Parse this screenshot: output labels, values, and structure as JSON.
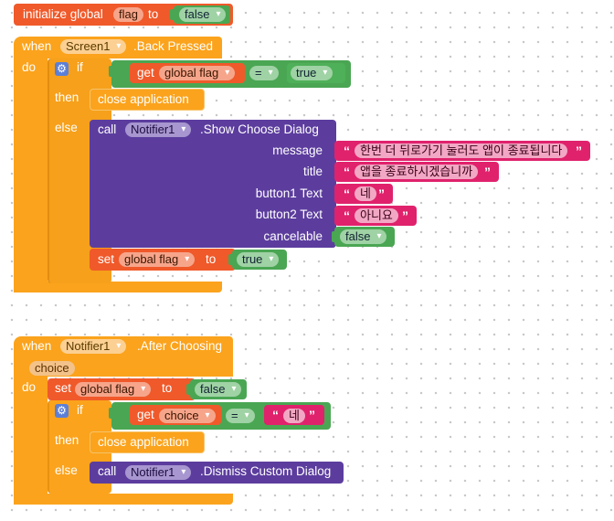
{
  "global_init": {
    "label": "initialize global",
    "var_name": "flag",
    "to_label": "to",
    "value": "false"
  },
  "back_pressed": {
    "when_label": "when",
    "component": "Screen1",
    "event": ".Back Pressed",
    "do_label": "do",
    "if_label": "if",
    "then_label": "then",
    "else_label": "else",
    "get_label": "get",
    "get_var": "global flag",
    "compare_op": "=",
    "compare_value": "true",
    "close_label": "close application",
    "call_label": "call",
    "notifier": "Notifier1",
    "method": ".Show Choose Dialog",
    "params": [
      {
        "name": "message",
        "value": "한번 더 뒤로가기 눌러도 앱이 종료됩니다"
      },
      {
        "name": "title",
        "value": "앱을 종료하시겠습니까"
      },
      {
        "name": "button1 Text",
        "value": "네"
      },
      {
        "name": "button2 Text",
        "value": "아니요"
      },
      {
        "name": "cancelable",
        "value": "false"
      }
    ],
    "set_label": "set",
    "set_var": "global flag",
    "set_to": "to",
    "set_value": "true"
  },
  "after_choosing": {
    "when_label": "when",
    "component": "Notifier1",
    "event": ".After Choosing",
    "param": "choice",
    "do_label": "do",
    "set_label": "set",
    "set_var": "global flag",
    "set_to": "to",
    "set_value": "false",
    "if_label": "if",
    "get_label": "get",
    "get_var": "choice",
    "compare_op": "=",
    "compare_value": "네",
    "then_label": "then",
    "close_label": "close application",
    "else_label": "else",
    "call_label": "call",
    "notifier": "Notifier1",
    "method": ".Dismiss Custom Dialog"
  },
  "quote_open": "“",
  "quote_close": "”",
  "gear_glyph": "⚙"
}
